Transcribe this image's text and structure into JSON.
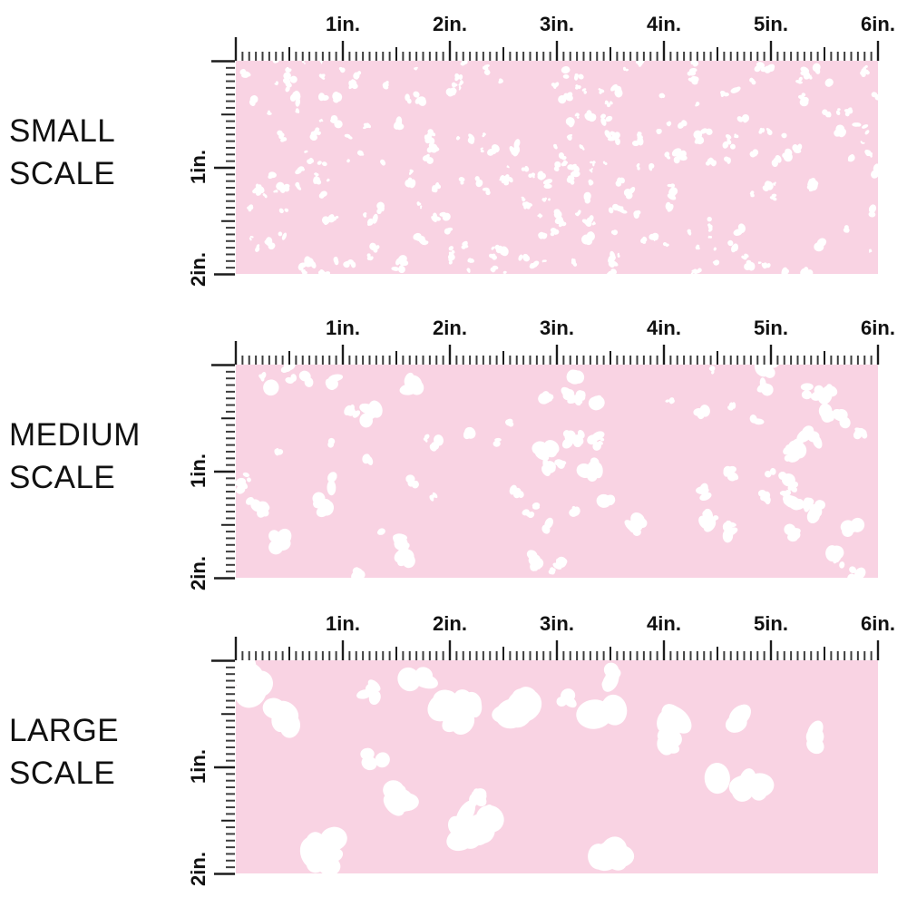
{
  "ruler": {
    "h_labels": [
      "1in.",
      "2in.",
      "3in.",
      "4in.",
      "5in.",
      "6in."
    ],
    "v_labels": [
      "1in.",
      "2in."
    ],
    "inches_horizontal": 6,
    "inches_vertical": 2,
    "ticks_per_inch": 16
  },
  "rows": [
    {
      "id": "small",
      "label_top": "SMALL",
      "label_bottom": "SCALE",
      "pattern": {
        "seed": 7,
        "count": 280,
        "rmin": 1.6,
        "rmax": 6,
        "lobes_min": 2,
        "lobes_max": 4
      }
    },
    {
      "id": "medium",
      "label_top": "MEDIUM",
      "label_bottom": "SCALE",
      "pattern": {
        "seed": 13,
        "count": 95,
        "rmin": 3,
        "rmax": 10.5,
        "lobes_min": 2,
        "lobes_max": 5
      }
    },
    {
      "id": "large",
      "label_top": "LARGE",
      "label_bottom": "SCALE",
      "pattern": {
        "seed": 29,
        "count": 26,
        "rmin": 7,
        "rmax": 21,
        "lobes_min": 3,
        "lobes_max": 6
      }
    }
  ],
  "colors": {
    "fabric_pink": "#F9D3E3",
    "spot_white": "#FFFFFF",
    "tick_dark": "#1C1C1C",
    "tick_mid": "#3D3D3D",
    "text": "#111111"
  }
}
